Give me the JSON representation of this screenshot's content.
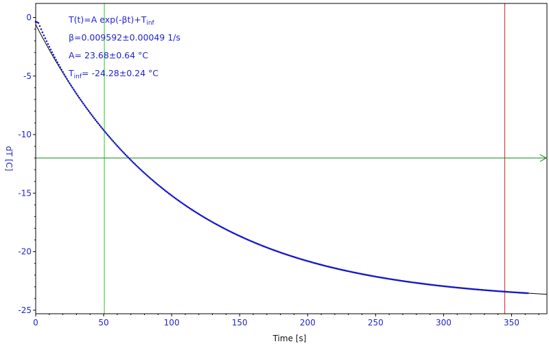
{
  "chart_data": {
    "type": "scatter",
    "title": "",
    "xlabel": "Time [s]",
    "ylabel": "dT [C]",
    "xlim": [
      0,
      376
    ],
    "ylim": [
      -25.3,
      1.2
    ],
    "x_ticks": [
      0,
      50,
      100,
      150,
      200,
      250,
      300,
      350
    ],
    "y_ticks": [
      0,
      -5,
      -10,
      -15,
      -20,
      -25
    ],
    "grid": false,
    "annotation": {
      "line1_main": "T(t)=A exp(-βt)+T",
      "line1_sub": "inf",
      "line2": "β=0.009592±0.00049 1/s",
      "line3": "A= 23.68±0.64 °C",
      "line4_main": "T",
      "line4_sub": "inf",
      "line4_rest": "= -24.28±0.24 °C"
    },
    "fit": {
      "A": 23.68,
      "beta": 0.009592,
      "T_inf": -24.28
    },
    "vertical_markers": [
      {
        "x": 50.5,
        "color": "#22cc22"
      },
      {
        "x": 345,
        "color": "#cc2222"
      }
    ],
    "horizontal_marker": {
      "y": -12.0,
      "color": "#118811"
    },
    "series": [
      {
        "color": "#1515c8",
        "x_start": 0,
        "x_end": 362,
        "x_step": 1
      }
    ]
  }
}
